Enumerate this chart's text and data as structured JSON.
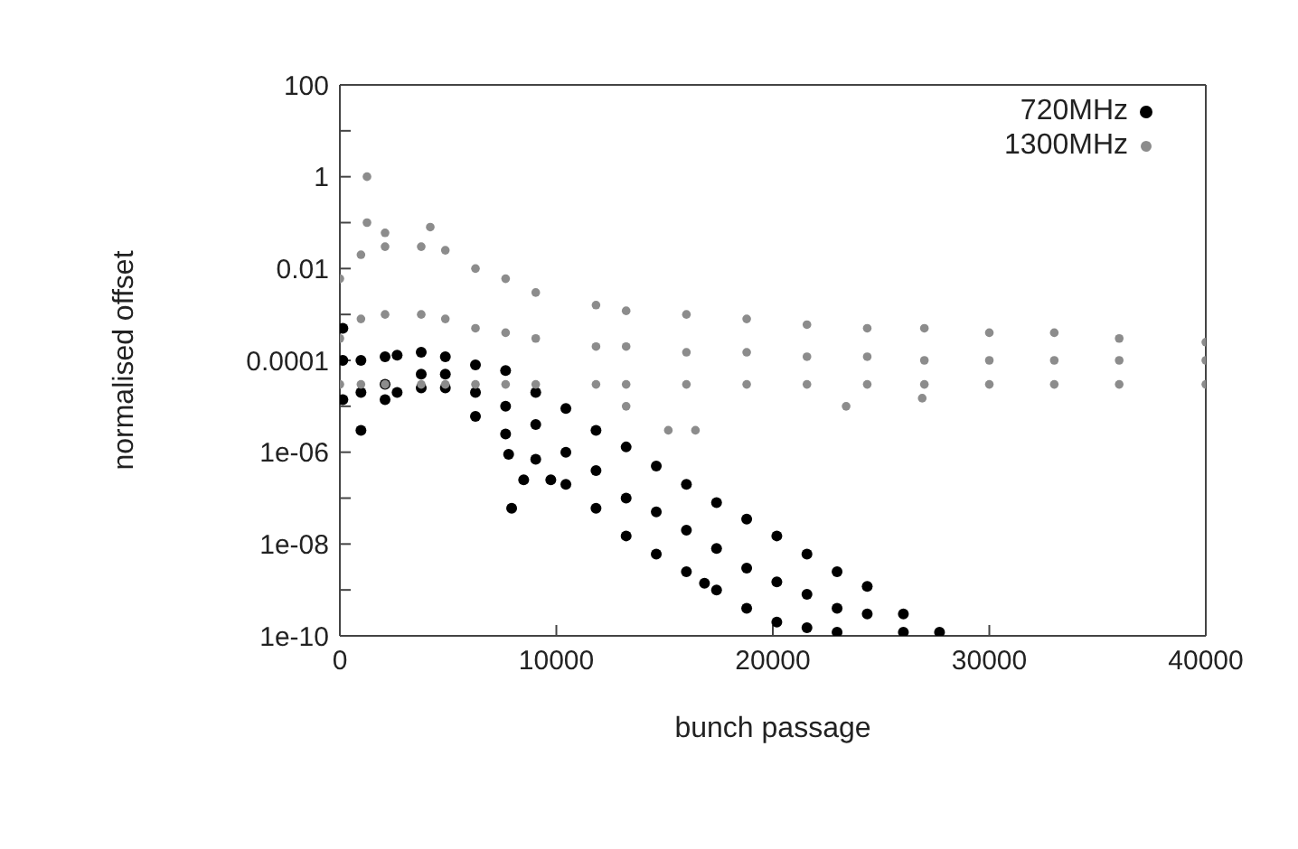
{
  "chart_data": {
    "type": "scatter",
    "xlabel": "bunch passage",
    "ylabel": "normalised offset",
    "log": "y",
    "marker": "circle",
    "legend": "top right",
    "grid": false,
    "xlim": [
      0,
      40000
    ],
    "xticks": [
      0,
      10000,
      20000,
      30000,
      40000
    ],
    "ylim": [
      1e-10,
      100
    ],
    "yticks": [
      {
        "value": 1e-10,
        "label": "1e-10"
      },
      {
        "value": 1e-09,
        "label": null
      },
      {
        "value": 1e-08,
        "label": "1e-08"
      },
      {
        "value": 1e-07,
        "label": null
      },
      {
        "value": 1e-06,
        "label": "1e-06"
      },
      {
        "value": 1e-05,
        "label": null
      },
      0.0001,
      {
        "value": 0.001,
        "label": null
      },
      0.01,
      {
        "value": 0.1,
        "label": null
      },
      1,
      {
        "value": 10,
        "label": null
      },
      100
    ],
    "series": [
      {
        "name": "720MHz",
        "color": "#000000",
        "x": [
          139,
          139,
          139,
          974,
          974,
          974,
          2088,
          2088,
          2088,
          2645,
          2645,
          3758,
          3758,
          3758,
          4872,
          4872,
          4872,
          6264,
          6264,
          6264,
          7656,
          7656,
          7656,
          7795,
          8491,
          7935,
          9744,
          9048,
          9048,
          9048,
          10440,
          10440,
          10440,
          11832,
          11832,
          11832,
          13224,
          13224,
          13224,
          14616,
          14616,
          14616,
          16008,
          16008,
          16008,
          17400,
          17400,
          17400,
          16843,
          18792,
          18792,
          18792,
          20184,
          20184,
          20184,
          21576,
          21576,
          21576,
          22968,
          22968,
          22968,
          24360,
          24360,
          26030,
          26030,
          27700
        ],
        "values": [
          0.0005,
          0.0001,
          1.4e-05,
          0.0001,
          2e-05,
          3e-06,
          0.00012,
          3e-05,
          1.4e-05,
          0.00013,
          2e-05,
          0.00015,
          5e-05,
          2.5e-05,
          0.00012,
          5e-05,
          2.5e-05,
          8e-05,
          2e-05,
          6e-06,
          6e-05,
          1e-05,
          2.5e-06,
          9e-07,
          2.5e-07,
          6e-08,
          2.5e-07,
          2e-05,
          4e-06,
          7e-07,
          9e-06,
          1e-06,
          2e-07,
          3e-06,
          4e-07,
          6e-08,
          1.3e-06,
          1e-07,
          1.5e-08,
          5e-07,
          5e-08,
          6e-09,
          2e-07,
          2e-08,
          2.5e-09,
          8e-08,
          8e-09,
          1e-09,
          1.4e-09,
          3.5e-08,
          3e-09,
          4e-10,
          1.5e-08,
          1.5e-09,
          2e-10,
          6e-09,
          8e-10,
          1.5e-10,
          2.5e-09,
          4e-10,
          1.2e-10,
          1.2e-09,
          3e-10,
          3e-10,
          1.2e-10,
          1.2e-10
        ]
      },
      {
        "name": "1300MHz",
        "color": "#8c8c8c",
        "x": [
          0,
          974,
          2088,
          3758,
          4872,
          6264,
          7656,
          9048,
          11832,
          13224,
          16008,
          18792,
          21576,
          24360,
          27000,
          30000,
          33000,
          36000,
          40000,
          0,
          974,
          2088,
          3758,
          4872,
          6264,
          7656,
          9048,
          11832,
          13224,
          16008,
          18792,
          21576,
          24360,
          27000,
          30000,
          33000,
          36000,
          40000,
          0,
          974,
          2088,
          3758,
          4872,
          6264,
          7656,
          9048,
          11832,
          13224,
          16008,
          18792,
          21576,
          24360,
          27000,
          30000,
          33000,
          36000,
          40000,
          1253,
          1253,
          4176,
          2088,
          13224,
          15172,
          16425,
          23386,
          26900
        ],
        "values": [
          0.006,
          0.02,
          0.03,
          0.03,
          0.025,
          0.01,
          0.006,
          0.003,
          0.0016,
          0.0012,
          0.001,
          0.0008,
          0.0006,
          0.0005,
          0.0005,
          0.0004,
          0.0004,
          0.0003,
          0.00025,
          0.0003,
          0.0008,
          0.001,
          0.001,
          0.0008,
          0.0005,
          0.0004,
          0.0003,
          0.0002,
          0.0002,
          0.00015,
          0.00015,
          0.00012,
          0.00012,
          0.0001,
          0.0001,
          0.0001,
          0.0001,
          0.0001,
          3e-05,
          3e-05,
          3e-05,
          3e-05,
          3e-05,
          3e-05,
          3e-05,
          3e-05,
          3e-05,
          3e-05,
          3e-05,
          3e-05,
          3e-05,
          3e-05,
          3e-05,
          3e-05,
          3e-05,
          3e-05,
          3e-05,
          1,
          0.1,
          0.08,
          0.06,
          1e-05,
          3e-06,
          3e-06,
          1e-05,
          1.5e-05
        ]
      }
    ]
  }
}
